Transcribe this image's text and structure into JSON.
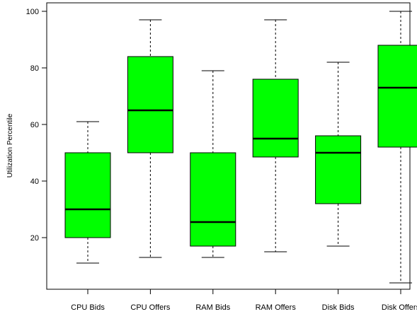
{
  "chart_data": {
    "type": "boxplot",
    "title": "",
    "xlabel": "",
    "ylabel": "Utilization Percentile",
    "ylim": [
      2,
      103
    ],
    "yticks": [
      20,
      40,
      60,
      80,
      100
    ],
    "grid": false,
    "box_color": "#00ff00",
    "categories": [
      "CPU Bids",
      "CPU Offers",
      "RAM Bids",
      "RAM Offers",
      "Disk Bids",
      "Disk Offers"
    ],
    "boxes": [
      {
        "min": 11,
        "q1": 20,
        "median": 30,
        "q3": 50,
        "max": 61
      },
      {
        "min": 13,
        "q1": 50,
        "median": 65,
        "q3": 84,
        "max": 97
      },
      {
        "min": 13,
        "q1": 17,
        "median": 25.5,
        "q3": 50,
        "max": 79
      },
      {
        "min": 15,
        "q1": 48.5,
        "median": 55,
        "q3": 76,
        "max": 97
      },
      {
        "min": 17,
        "q1": 32,
        "median": 50,
        "q3": 56,
        "max": 82
      },
      {
        "min": 4,
        "q1": 52,
        "median": 73,
        "q3": 88,
        "max": 100
      }
    ]
  }
}
